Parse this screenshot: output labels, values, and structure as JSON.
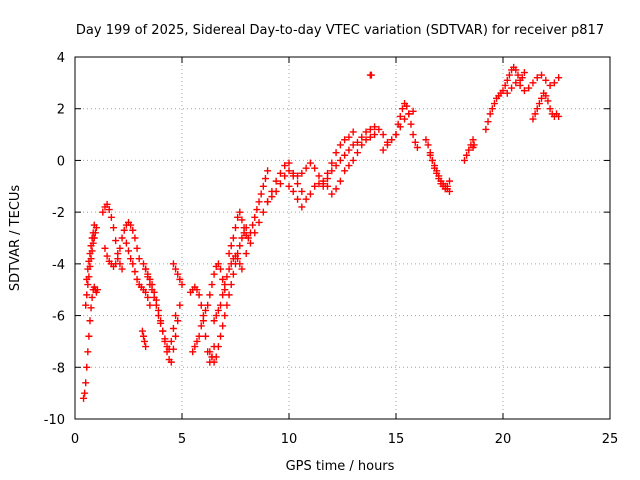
{
  "chart_data": {
    "type": "scatter",
    "title": "Day 199 of 2025, Sidereal Day-to-day VTEC variation (SDTVAR) for receiver p817",
    "xlabel": "GPS time / hours",
    "ylabel": "SDTVAR / TECUs",
    "xlim": [
      0,
      25
    ],
    "ylim": [
      -10,
      4
    ],
    "xticks": [
      0,
      5,
      10,
      15,
      20,
      25
    ],
    "yticks": [
      -10,
      -8,
      -6,
      -4,
      -2,
      0,
      2,
      4
    ],
    "grid": true,
    "marker": "plus",
    "color": "#ff0000",
    "series": [
      {
        "x": [
          0.4,
          0.45,
          0.5,
          0.55,
          0.6,
          0.65,
          0.7,
          0.75,
          0.8,
          0.85,
          0.9,
          0.95,
          1.0,
          1.05,
          0.5,
          0.55,
          0.6,
          0.65,
          0.7,
          0.75,
          0.8,
          0.85,
          0.9,
          0.95,
          1.0,
          0.55,
          0.6,
          0.65,
          0.7,
          0.75,
          0.8,
          0.85,
          0.9,
          1.3,
          1.4,
          1.5,
          1.6,
          1.7,
          1.8,
          1.9,
          2.0,
          2.1,
          2.2,
          1.4,
          1.5,
          1.6,
          1.7,
          1.8,
          1.9,
          2.0,
          2.1,
          2.2,
          2.3,
          2.4,
          2.5,
          2.6,
          2.7,
          2.8,
          2.9,
          3.0,
          2.4,
          2.5,
          2.6,
          2.7,
          2.8,
          2.9,
          3.0,
          3.1,
          3.2,
          3.3,
          3.4,
          3.5,
          3.2,
          3.3,
          3.4,
          3.5,
          3.6,
          3.7,
          3.8,
          3.9,
          4.0,
          4.1,
          4.2,
          4.3,
          4.4,
          4.5,
          4.6,
          4.7,
          4.8,
          4.9,
          3.3,
          3.4,
          3.5,
          3.6,
          3.7,
          3.8,
          3.9,
          4.0,
          4.1,
          4.2,
          4.3,
          4.4,
          4.5,
          4.6,
          4.7,
          3.15,
          3.2,
          3.25,
          3.3,
          4.6,
          4.7,
          4.8,
          4.9,
          5.0,
          5.4,
          5.5,
          5.6,
          5.7,
          5.8,
          5.9,
          6.0,
          6.1,
          6.2,
          6.3,
          6.4,
          6.5,
          5.5,
          5.6,
          5.7,
          5.8,
          5.9,
          6.0,
          6.1,
          6.2,
          6.3,
          6.4,
          6.5,
          6.6,
          6.7,
          6.8,
          6.9,
          7.0,
          6.3,
          6.4,
          6.5,
          6.6,
          6.7,
          6.8,
          6.9,
          7.0,
          7.1,
          7.2,
          7.3,
          7.4,
          7.5,
          7.6,
          7.7,
          7.8,
          7.9,
          8.0,
          6.5,
          6.6,
          6.7,
          6.8,
          6.9,
          7.0,
          7.1,
          7.2,
          7.3,
          7.4,
          7.5,
          7.6,
          7.7,
          7.8,
          7.2,
          7.3,
          7.4,
          7.5,
          7.6,
          7.7,
          7.8,
          7.9,
          8.0,
          8.1,
          8.2,
          8.3,
          8.4,
          8.5,
          8.6,
          8.7,
          8.8,
          8.9,
          9.0,
          8.0,
          8.2,
          8.4,
          8.6,
          8.8,
          9.0,
          9.2,
          9.4,
          9.6,
          9.8,
          10.0,
          9.0,
          9.2,
          9.4,
          9.6,
          9.8,
          10.0,
          10.2,
          10.4,
          10.6,
          10.8,
          11.0,
          11.2,
          11.4,
          11.6,
          11.8,
          12.0,
          12.2,
          12.4,
          12.6,
          12.8,
          13.0,
          10.2,
          10.4,
          10.6,
          10.8,
          11.0,
          11.2,
          11.4,
          11.6,
          11.8,
          12.0,
          12.2,
          12.4,
          12.6,
          12.8,
          13.0,
          13.2,
          13.4,
          13.6,
          13.8,
          14.0,
          10.0,
          10.2,
          10.4,
          10.6,
          11.6,
          11.8,
          12.0,
          12.2,
          12.4,
          12.6,
          12.8,
          13.0,
          13.2,
          13.4,
          13.6,
          13.8,
          14.0,
          14.2,
          14.4,
          14.6,
          13.8,
          13.85,
          14.4,
          14.6,
          14.8,
          15.0,
          15.2,
          15.4,
          15.6,
          15.8,
          15.0,
          15.1,
          15.2,
          15.3,
          15.4,
          15.5,
          15.6,
          15.7,
          15.8,
          15.9,
          16.0,
          16.4,
          16.5,
          16.6,
          16.7,
          16.8,
          16.9,
          17.0,
          17.1,
          17.2,
          17.3,
          17.4,
          17.5,
          16.6,
          16.7,
          16.8,
          16.9,
          17.0,
          17.1,
          17.2,
          17.3,
          17.4,
          17.5,
          18.2,
          18.3,
          18.4,
          18.5,
          18.6,
          19.2,
          19.3,
          19.4,
          19.5,
          19.6,
          19.7,
          19.8,
          19.9,
          20.0,
          20.1,
          20.2,
          20.3,
          20.4,
          20.5,
          20.6,
          20.7,
          20.8,
          20.9,
          21.0,
          20.2,
          20.4,
          20.6,
          20.8,
          21.0,
          21.2,
          21.4,
          21.6,
          21.8,
          22.0,
          22.2,
          22.4,
          22.6,
          21.4,
          21.5,
          21.6,
          21.7,
          21.8,
          21.9,
          22.0,
          22.1,
          22.2,
          22.3,
          22.4,
          22.5,
          22.6,
          18.6,
          18.65
        ],
        "y": [
          -9.2,
          -9.0,
          -8.6,
          -8.0,
          -7.4,
          -6.8,
          -6.2,
          -5.7,
          -5.3,
          -5.0,
          -4.9,
          -5.0,
          -5.1,
          -5.0,
          -5.6,
          -5.2,
          -4.8,
          -4.5,
          -4.1,
          -3.8,
          -3.5,
          -3.2,
          -3.0,
          -2.8,
          -2.6,
          -4.6,
          -4.2,
          -3.9,
          -3.6,
          -3.3,
          -3.0,
          -2.8,
          -2.5,
          -2.0,
          -1.8,
          -1.7,
          -1.9,
          -2.2,
          -2.6,
          -3.1,
          -3.6,
          -4.0,
          -4.2,
          -3.4,
          -3.7,
          -3.9,
          -4.0,
          -4.1,
          -4.0,
          -3.8,
          -3.4,
          -3.0,
          -2.7,
          -2.5,
          -2.4,
          -2.5,
          -2.7,
          -3.0,
          -3.4,
          -3.8,
          -3.2,
          -3.5,
          -3.8,
          -4.0,
          -4.3,
          -4.6,
          -4.8,
          -4.9,
          -5.0,
          -5.1,
          -5.3,
          -5.6,
          -4.0,
          -4.2,
          -4.4,
          -4.6,
          -4.8,
          -5.1,
          -5.4,
          -5.8,
          -6.2,
          -6.6,
          -7.0,
          -7.4,
          -7.7,
          -7.8,
          -7.3,
          -6.8,
          -6.2,
          -5.6,
          -4.2,
          -4.5,
          -4.8,
          -5.0,
          -5.3,
          -5.6,
          -6.0,
          -6.3,
          -6.6,
          -6.9,
          -7.2,
          -7.3,
          -7.0,
          -6.5,
          -6.0,
          -6.6,
          -6.8,
          -7.0,
          -7.2,
          -4.0,
          -4.2,
          -4.4,
          -4.6,
          -4.8,
          -5.1,
          -5.0,
          -4.9,
          -5.0,
          -5.2,
          -5.6,
          -6.2,
          -6.8,
          -7.4,
          -7.8,
          -7.6,
          -7.2,
          -7.4,
          -7.2,
          -7.0,
          -6.8,
          -6.4,
          -6.0,
          -5.8,
          -5.6,
          -5.2,
          -4.8,
          -4.4,
          -4.1,
          -4.0,
          -4.2,
          -4.6,
          -5.0,
          -7.4,
          -7.6,
          -7.8,
          -7.6,
          -7.2,
          -6.8,
          -6.4,
          -6.0,
          -5.6,
          -5.2,
          -4.8,
          -4.4,
          -4.0,
          -3.6,
          -3.3,
          -3.0,
          -2.8,
          -2.6,
          -6.2,
          -6.0,
          -5.8,
          -5.6,
          -5.2,
          -4.8,
          -4.5,
          -4.2,
          -4.0,
          -3.8,
          -3.7,
          -3.8,
          -4.0,
          -4.2,
          -3.6,
          -3.3,
          -3.0,
          -2.6,
          -2.2,
          -2.0,
          -2.3,
          -2.6,
          -2.9,
          -3.0,
          -2.8,
          -2.5,
          -2.2,
          -1.9,
          -1.6,
          -1.3,
          -1.0,
          -0.7,
          -0.4,
          -3.6,
          -3.2,
          -2.8,
          -2.4,
          -2.0,
          -1.6,
          -1.2,
          -0.8,
          -0.5,
          -0.2,
          -0.1,
          -1.6,
          -1.4,
          -1.2,
          -0.9,
          -0.6,
          -0.4,
          -0.5,
          -0.6,
          -0.5,
          -0.3,
          -0.1,
          -0.3,
          -0.6,
          -0.9,
          -0.5,
          -0.1,
          0.3,
          0.6,
          0.8,
          0.9,
          1.1,
          -0.6,
          -0.9,
          -1.2,
          -1.5,
          -1.3,
          -1.0,
          -0.9,
          -0.8,
          -1.0,
          -1.3,
          -1.1,
          -0.8,
          -0.4,
          -0.2,
          0.0,
          0.3,
          0.6,
          0.8,
          0.9,
          1.0,
          -1.0,
          -1.2,
          -1.5,
          -1.8,
          -1.0,
          -0.7,
          -0.4,
          -0.2,
          0.0,
          0.2,
          0.4,
          0.6,
          0.7,
          0.9,
          1.1,
          1.2,
          1.3,
          1.2,
          1.0,
          0.7,
          3.3,
          3.3,
          0.4,
          0.6,
          0.8,
          1.0,
          1.3,
          1.6,
          1.8,
          1.9,
          1.0,
          1.4,
          1.7,
          2.0,
          2.2,
          2.1,
          1.8,
          1.4,
          1.0,
          0.7,
          0.5,
          0.8,
          0.6,
          0.3,
          0.0,
          -0.3,
          -0.5,
          -0.7,
          -0.9,
          -1.0,
          -1.1,
          -1.0,
          -0.8,
          0.2,
          0.0,
          -0.2,
          -0.4,
          -0.6,
          -0.8,
          -0.9,
          -1.0,
          -1.1,
          -1.2,
          0.0,
          0.2,
          0.4,
          0.6,
          0.8,
          1.2,
          1.5,
          1.8,
          2.0,
          2.2,
          2.4,
          2.5,
          2.6,
          2.7,
          2.9,
          3.1,
          3.3,
          3.5,
          3.6,
          3.5,
          3.3,
          3.1,
          3.2,
          3.4,
          2.6,
          2.8,
          3.0,
          2.9,
          2.7,
          2.8,
          3.0,
          3.2,
          3.3,
          3.1,
          2.9,
          3.0,
          3.2,
          1.6,
          1.8,
          2.0,
          2.2,
          2.4,
          2.6,
          2.5,
          2.3,
          2.0,
          1.8,
          1.7,
          1.8,
          1.7,
          0.5,
          0.6
        ]
      }
    ]
  }
}
